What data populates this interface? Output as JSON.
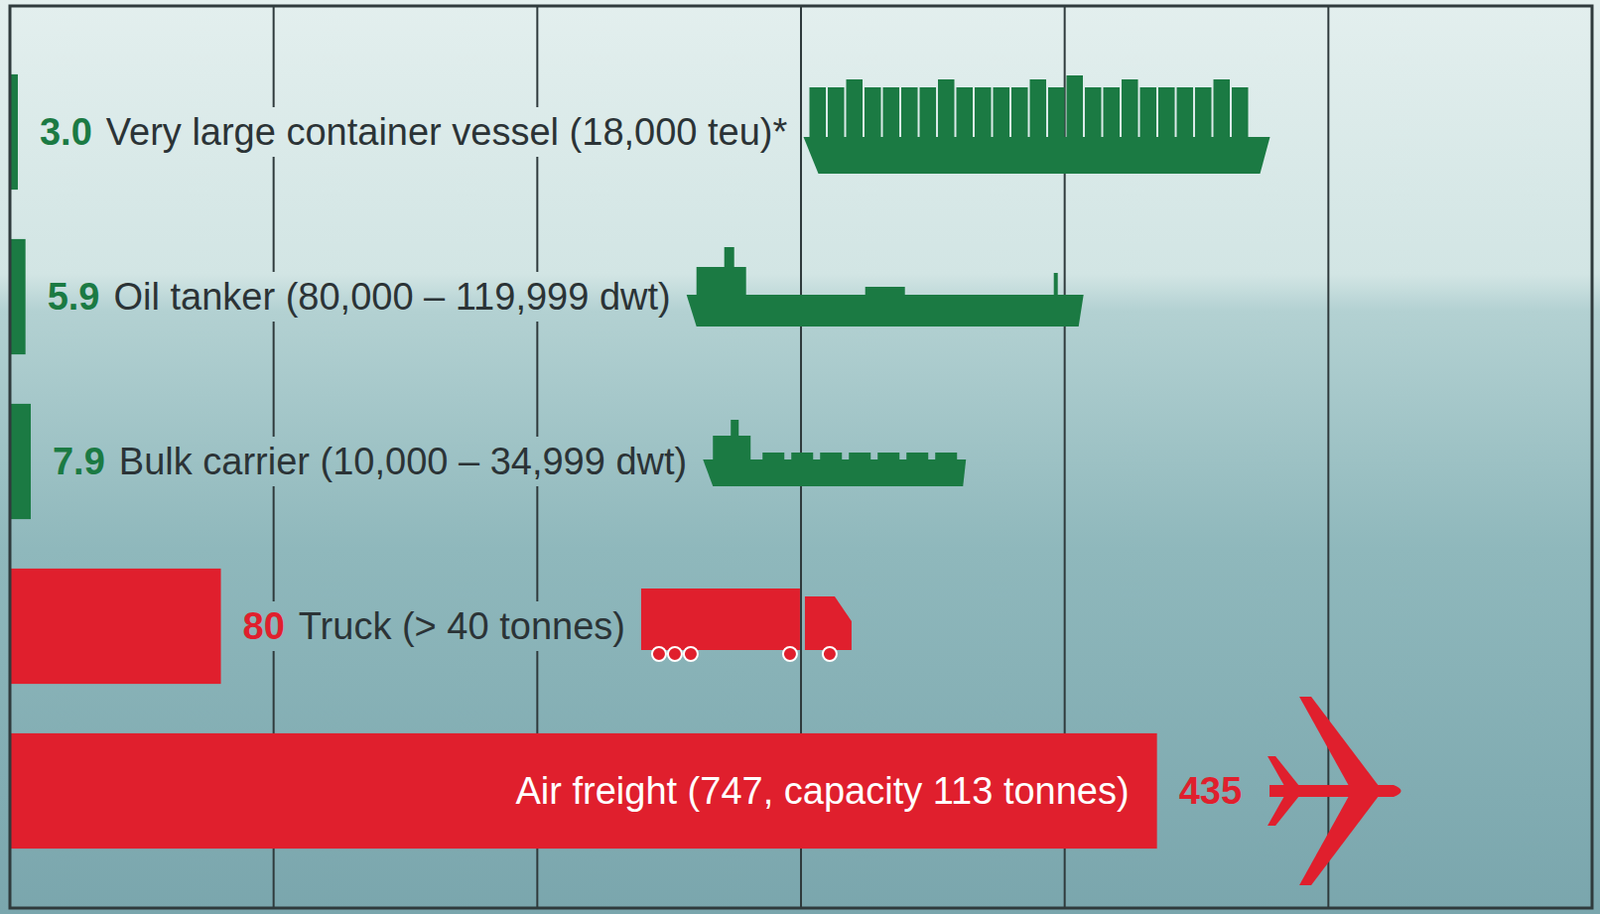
{
  "chart_data": {
    "type": "bar",
    "orientation": "horizontal",
    "categories": [
      "Very large container vessel (18,000 teu)*",
      "Oil tanker (80,000 – 119,999 dwt)",
      "Bulk carrier (10,000 – 34,999 dwt)",
      "Truck (> 40 tonnes)",
      "Air freight (747, capacity 113 tonnes)"
    ],
    "values": [
      3.0,
      5.9,
      7.9,
      80,
      435
    ],
    "value_labels": [
      "3.0",
      "5.9",
      "7.9",
      "80",
      "435"
    ],
    "colors": [
      "#1b7a43",
      "#1b7a43",
      "#1b7a43",
      "#e01f2d",
      "#e01f2d"
    ],
    "xlim": [
      0,
      600
    ],
    "xticks": [
      100,
      200,
      300,
      400,
      500
    ],
    "grid": true,
    "tick_labels": false,
    "data_labels": true
  }
}
